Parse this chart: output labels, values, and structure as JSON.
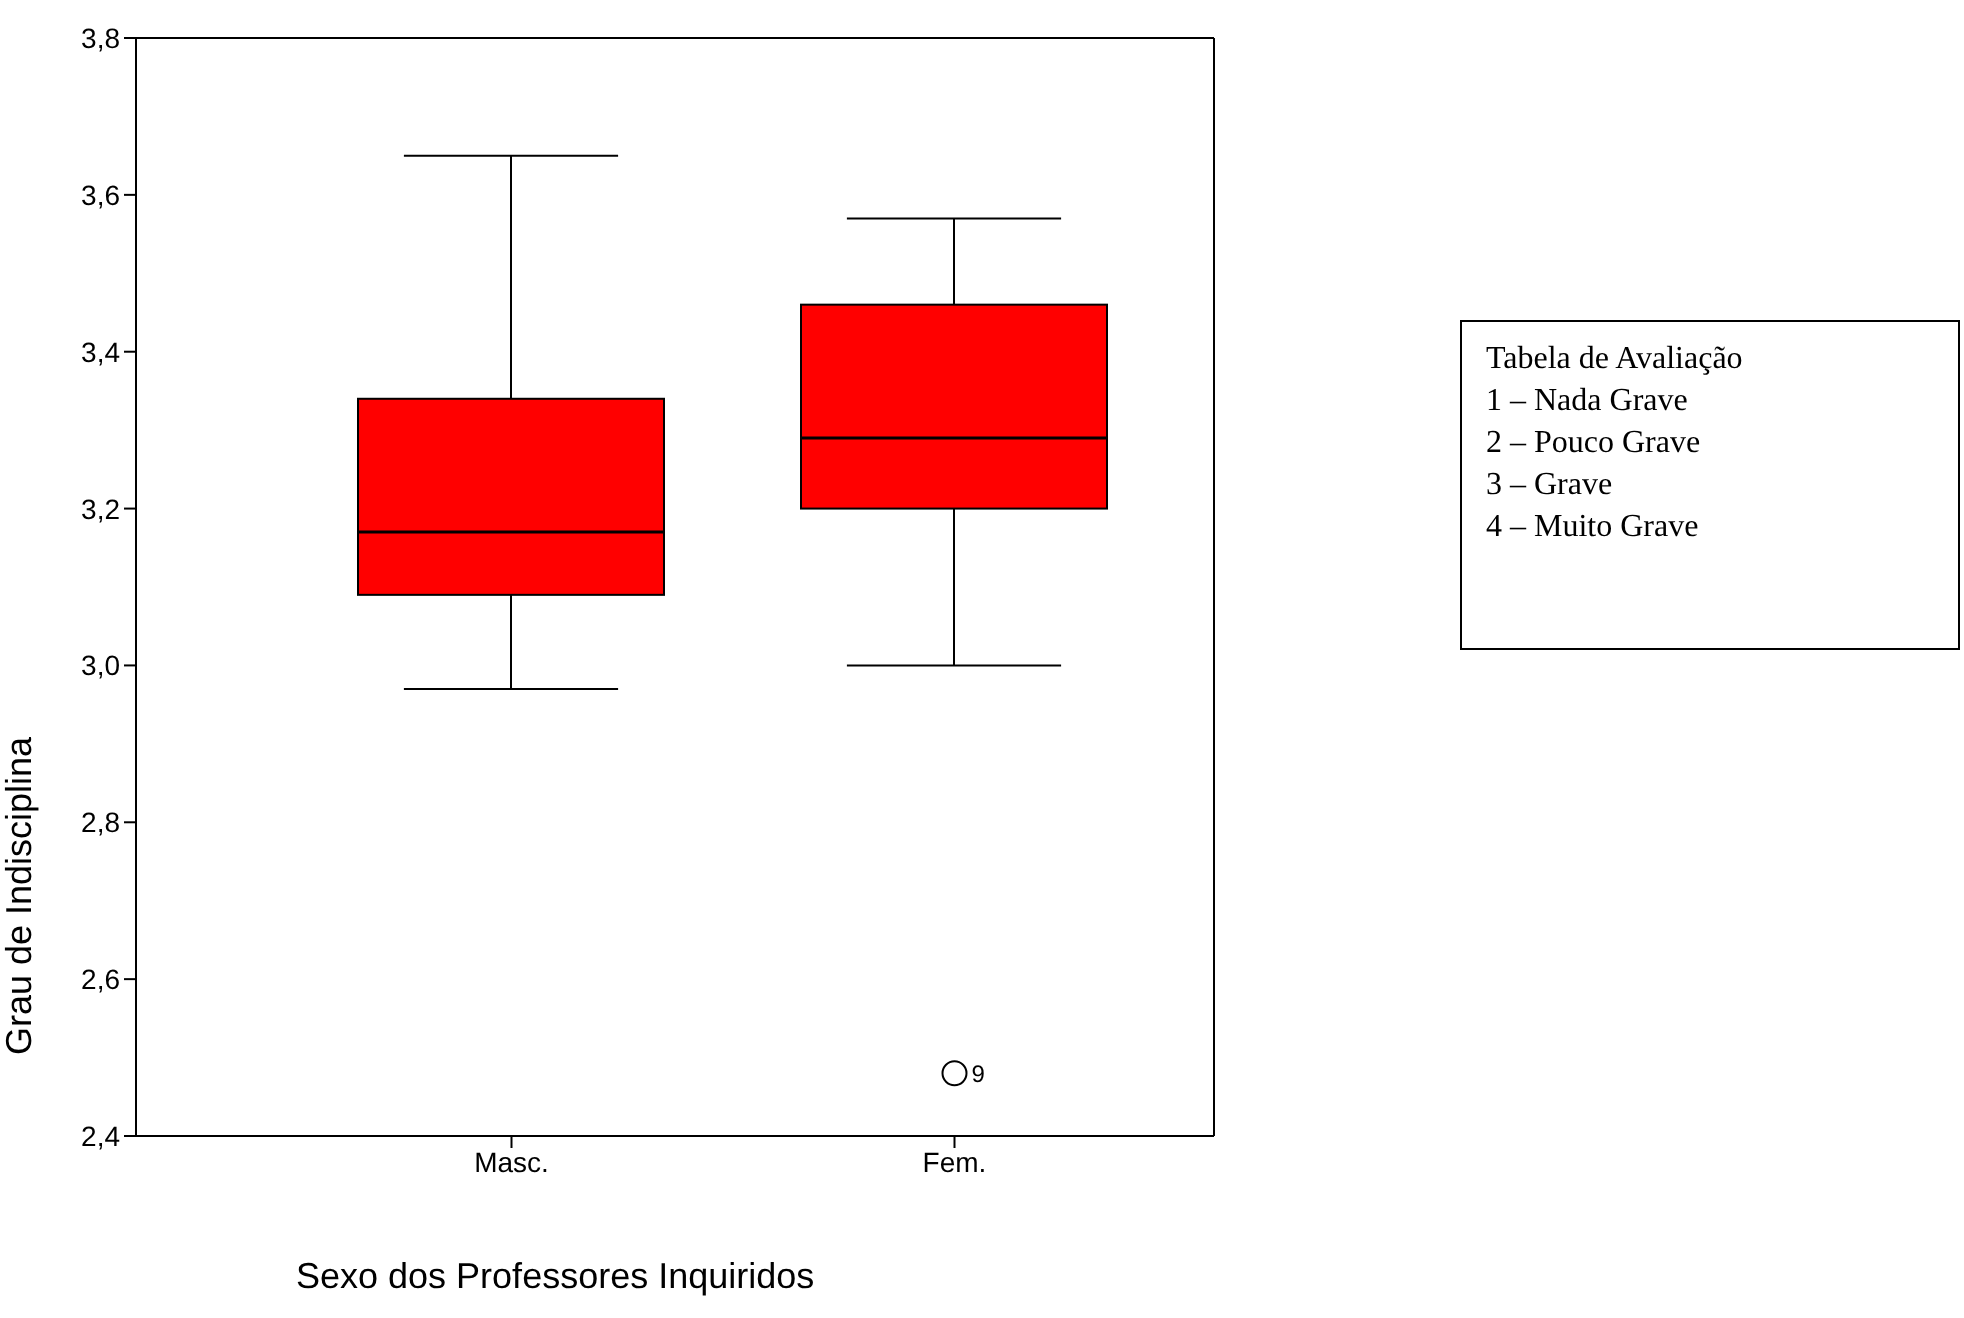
{
  "chart_data": {
    "type": "box",
    "xlabel": "Sexo dos Professores Inquiridos",
    "ylabel": "Grau de Indisciplina",
    "categories": [
      "Masc.",
      "Fem."
    ],
    "series": [
      {
        "color": "#ff0000",
        "boxes": [
          {
            "low": 2.97,
            "q1": 3.09,
            "median": 3.17,
            "q3": 3.34,
            "high": 3.65
          },
          {
            "low": 3.0,
            "q1": 3.2,
            "median": 3.29,
            "q3": 3.46,
            "high": 3.57,
            "outliers": [
              2.48
            ]
          }
        ]
      }
    ],
    "ylim": [
      2.4,
      3.8
    ],
    "yticks": [
      {
        "value": 2.4,
        "label": "2,4"
      },
      {
        "value": 2.6,
        "label": "2,6"
      },
      {
        "value": 2.8,
        "label": "2,8"
      },
      {
        "value": 3.0,
        "label": "3,0"
      },
      {
        "value": 3.2,
        "label": "3,2"
      },
      {
        "value": 3.4,
        "label": "3,4"
      },
      {
        "value": 3.6,
        "label": "3,6"
      },
      {
        "value": 3.8,
        "label": "3,8"
      }
    ],
    "annotations": [
      "9",
      "Tabela de Avaliação",
      "1 – Nada Grave",
      "2 – Pouco Grave",
      "3 – Grave",
      "4 – Muito Grave"
    ]
  }
}
